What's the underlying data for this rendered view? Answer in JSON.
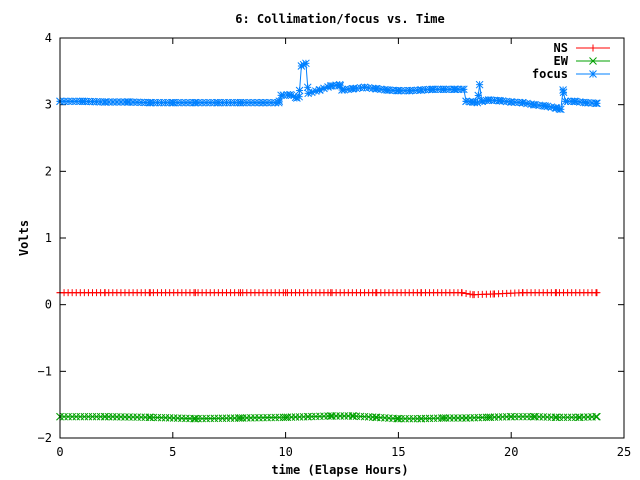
{
  "chart_data": {
    "type": "line",
    "title": "6: Collimation/focus vs. Time",
    "xlabel": "time (Elapse Hours)",
    "ylabel": "Volts",
    "xlim": [
      0,
      25
    ],
    "ylim": [
      -2,
      4
    ],
    "xticks": [
      0,
      5,
      10,
      15,
      20,
      25
    ],
    "yticks": [
      -2,
      -1,
      0,
      1,
      2,
      3,
      4
    ],
    "grid": false,
    "legend_position": "top-right",
    "series": [
      {
        "name": "NS",
        "color": "#ff0000",
        "marker": "plus",
        "points": [
          [
            0,
            0.18
          ],
          [
            2,
            0.18
          ],
          [
            4,
            0.18
          ],
          [
            6,
            0.18
          ],
          [
            8,
            0.18
          ],
          [
            10,
            0.18
          ],
          [
            12,
            0.18
          ],
          [
            14,
            0.18
          ],
          [
            16,
            0.18
          ],
          [
            17.8,
            0.18
          ],
          [
            18.3,
            0.15
          ],
          [
            19.2,
            0.16
          ],
          [
            20.5,
            0.18
          ],
          [
            22,
            0.18
          ],
          [
            23.8,
            0.18
          ]
        ]
      },
      {
        "name": "EW",
        "color": "#00a000",
        "marker": "x",
        "points": [
          [
            0,
            -1.68
          ],
          [
            2,
            -1.68
          ],
          [
            4,
            -1.69
          ],
          [
            6,
            -1.71
          ],
          [
            8,
            -1.7
          ],
          [
            10,
            -1.69
          ],
          [
            11,
            -1.68
          ],
          [
            12,
            -1.67
          ],
          [
            13,
            -1.67
          ],
          [
            14,
            -1.69
          ],
          [
            15,
            -1.71
          ],
          [
            16,
            -1.71
          ],
          [
            17,
            -1.7
          ],
          [
            18,
            -1.7
          ],
          [
            19,
            -1.69
          ],
          [
            20,
            -1.68
          ],
          [
            21,
            -1.68
          ],
          [
            22,
            -1.69
          ],
          [
            23,
            -1.69
          ],
          [
            23.8,
            -1.68
          ]
        ]
      },
      {
        "name": "focus",
        "color": "#0080ff",
        "marker": "star",
        "points": [
          [
            0,
            3.05
          ],
          [
            1,
            3.05
          ],
          [
            2,
            3.04
          ],
          [
            3,
            3.04
          ],
          [
            4,
            3.03
          ],
          [
            5,
            3.03
          ],
          [
            6,
            3.03
          ],
          [
            7,
            3.03
          ],
          [
            8,
            3.03
          ],
          [
            9,
            3.03
          ],
          [
            9.7,
            3.03
          ],
          [
            9.8,
            3.14
          ],
          [
            10.2,
            3.15
          ],
          [
            10.5,
            3.1
          ],
          [
            10.6,
            3.12
          ],
          [
            10.7,
            3.58
          ],
          [
            10.9,
            3.62
          ],
          [
            11,
            3.17
          ],
          [
            11.5,
            3.22
          ],
          [
            12,
            3.28
          ],
          [
            12.4,
            3.3
          ],
          [
            12.5,
            3.22
          ],
          [
            13,
            3.24
          ],
          [
            13.5,
            3.26
          ],
          [
            14,
            3.24
          ],
          [
            14.5,
            3.22
          ],
          [
            15,
            3.21
          ],
          [
            15.5,
            3.21
          ],
          [
            16,
            3.22
          ],
          [
            16.5,
            3.23
          ],
          [
            17,
            3.23
          ],
          [
            17.5,
            3.23
          ],
          [
            17.9,
            3.23
          ],
          [
            18,
            3.05
          ],
          [
            18.3,
            3.04
          ],
          [
            18.5,
            3.03
          ],
          [
            18.6,
            3.3
          ],
          [
            18.7,
            3.05
          ],
          [
            19,
            3.07
          ],
          [
            19.5,
            3.06
          ],
          [
            20,
            3.04
          ],
          [
            20.5,
            3.03
          ],
          [
            21,
            3.0
          ],
          [
            21.5,
            2.98
          ],
          [
            22,
            2.95
          ],
          [
            22.2,
            2.93
          ],
          [
            22.3,
            3.22
          ],
          [
            22.4,
            3.05
          ],
          [
            22.8,
            3.05
          ],
          [
            23.3,
            3.03
          ],
          [
            23.8,
            3.02
          ]
        ]
      }
    ]
  }
}
